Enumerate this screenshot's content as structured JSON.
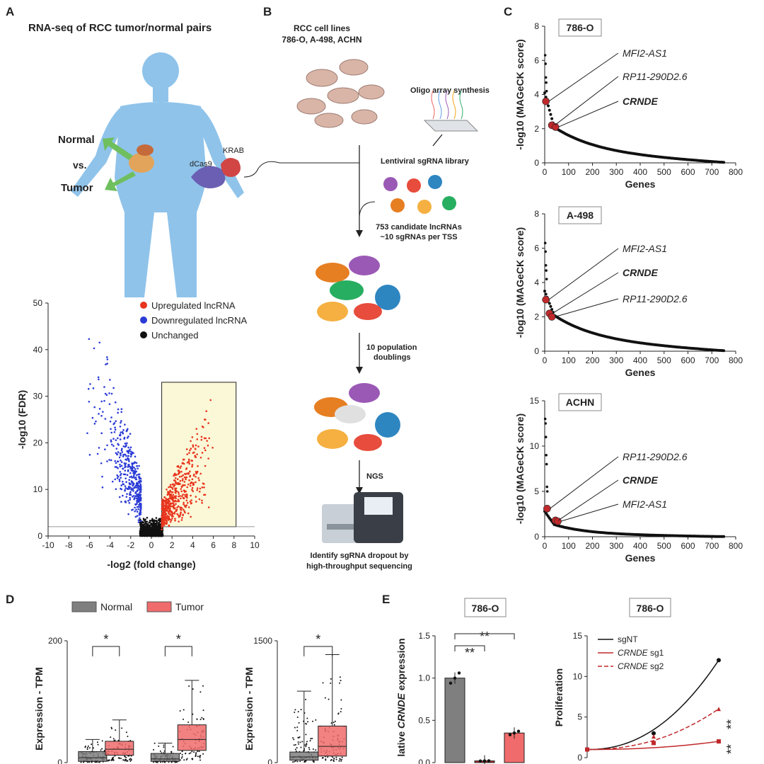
{
  "panels": {
    "A": "A",
    "B": "B",
    "C": "C",
    "D": "D",
    "E": "E"
  },
  "panel_a": {
    "title": "RNA-seq of RCC tumor/normal pairs",
    "normal_label": "Normal",
    "vs_label": "vs.",
    "tumor_label": "Tumor"
  },
  "panel_b": {
    "cell_lines_title": "RCC cell lines",
    "cell_lines_names": "786-O, A-498, ACHN",
    "oligo": "Oligo array synthesis",
    "dcas9": "dCas9",
    "krab": "KRAB",
    "library": "Lentiviral sgRNA library",
    "candidates_1": "753 candidate lncRNAs",
    "candidates_2": "~10 sgRNAs per TSS",
    "doublings_1": "10 population",
    "doublings_2": "doublings",
    "ngs": "NGS",
    "identify_1": "Identify sgRNA dropout by",
    "identify_2": "high-throughput sequencing"
  },
  "colors": {
    "up": "#e8351e",
    "down": "#2a3bd6",
    "unchanged": "#111111",
    "highlight": "#fbf8d8",
    "marker": "#c0292b",
    "normal": "#7f7f7f",
    "tumor": "#f06b6b"
  },
  "chart_data": [
    {
      "id": "volcano",
      "type": "scatter",
      "xlabel": "-log2 (fold change)",
      "ylabel": "-log10 (FDR)",
      "xlim": [
        -10,
        10
      ],
      "ylim": [
        0,
        50
      ],
      "xticks": [
        "-10",
        "-8",
        "-6",
        "-4",
        "-2",
        "0",
        "2",
        "4",
        "6",
        "8",
        "10"
      ],
      "yticks": [
        "0",
        "10",
        "20",
        "30",
        "40",
        "50"
      ],
      "legend": [
        "Upregulated lncRNA",
        "Downregulated lncRNA",
        "Unchanged"
      ],
      "threshold_y": 2,
      "highlight_box": {
        "x": [
          1,
          8.2
        ],
        "y": [
          2,
          33
        ]
      }
    },
    {
      "id": "rank-786o",
      "type": "scatter",
      "title": "786-O",
      "xlabel": "Genes",
      "ylabel": "-log10 (MAGeCK score)",
      "xlim": [
        0,
        800
      ],
      "ylim": [
        0,
        8
      ],
      "xticks": [
        "0",
        "100",
        "200",
        "300",
        "400",
        "500",
        "600",
        "700",
        "800"
      ],
      "yticks": [
        "0",
        "2",
        "4",
        "6",
        "8"
      ],
      "annotations": [
        {
          "label": "MFI2-AS1",
          "bold": false
        },
        {
          "label": "RP11-290D2.6",
          "bold": false
        },
        {
          "label": "CRNDE",
          "bold": true
        }
      ],
      "highlighted": [
        {
          "x": 5,
          "y": 3.6
        },
        {
          "x": 30,
          "y": 2.2
        },
        {
          "x": 45,
          "y": 2.1
        }
      ]
    },
    {
      "id": "rank-a498",
      "type": "scatter",
      "title": "A-498",
      "xlabel": "Genes",
      "ylabel": "-log10 (MAGeCK score)",
      "xlim": [
        0,
        800
      ],
      "ylim": [
        0,
        8
      ],
      "xticks": [
        "0",
        "100",
        "200",
        "300",
        "400",
        "500",
        "600",
        "700",
        "800"
      ],
      "yticks": [
        "0",
        "2",
        "4",
        "6",
        "8"
      ],
      "annotations": [
        {
          "label": "MFI2-AS1",
          "bold": false
        },
        {
          "label": "CRNDE",
          "bold": true
        },
        {
          "label": "RP11-290D2.6",
          "bold": false
        }
      ],
      "highlighted": [
        {
          "x": 5,
          "y": 3.0
        },
        {
          "x": 20,
          "y": 2.2
        },
        {
          "x": 30,
          "y": 2.0
        }
      ]
    },
    {
      "id": "rank-achn",
      "type": "scatter",
      "title": "ACHN",
      "xlabel": "Genes",
      "ylabel": "-log10 (MAGeCK score)",
      "xlim": [
        0,
        800
      ],
      "ylim": [
        0,
        15
      ],
      "xticks": [
        "0",
        "100",
        "200",
        "300",
        "400",
        "500",
        "600",
        "700",
        "800"
      ],
      "yticks": [
        "0",
        "5",
        "10",
        "15"
      ],
      "annotations": [
        {
          "label": "RP11-290D2.6",
          "bold": false
        },
        {
          "label": "CRNDE",
          "bold": true
        },
        {
          "label": "MFI2-AS1",
          "bold": false
        }
      ],
      "highlighted": [
        {
          "x": 10,
          "y": 3.1
        },
        {
          "x": 45,
          "y": 1.8
        },
        {
          "x": 55,
          "y": 1.7
        }
      ]
    },
    {
      "id": "boxplot-1",
      "type": "bar",
      "ylabel": "Expression - TPM",
      "yticks": [
        "0",
        "200"
      ],
      "ylim": [
        0,
        200
      ],
      "legend": [
        "Normal",
        "Tumor"
      ],
      "groups": [
        {
          "normal": {
            "median": 8,
            "q1": 2,
            "q3": 18,
            "max": 38
          },
          "tumor": {
            "median": 22,
            "q1": 12,
            "q3": 35,
            "max": 70
          },
          "sig": "*"
        },
        {
          "normal": {
            "median": 6,
            "q1": 2,
            "q3": 15,
            "max": 32
          },
          "tumor": {
            "median": 38,
            "q1": 20,
            "q3": 62,
            "max": 135
          },
          "sig": "*"
        }
      ]
    },
    {
      "id": "boxplot-2",
      "type": "bar",
      "ylabel": "Expression - TPM",
      "yticks": [
        "0",
        "1500"
      ],
      "ylim": [
        0,
        1500
      ],
      "groups": [
        {
          "normal": {
            "median": 70,
            "q1": 30,
            "q3": 130,
            "max": 880
          },
          "tumor": {
            "median": 200,
            "q1": 80,
            "q3": 450,
            "max": 1330
          },
          "sig": "*"
        }
      ]
    },
    {
      "id": "crnde-expression",
      "type": "bar",
      "title": "786-O",
      "ylabel": "Relative CRNDE expression",
      "ylabel_parts": [
        "lative ",
        "CRNDE",
        " expression"
      ],
      "yticks": [
        "0.0",
        "0.5",
        "1.0",
        "1.5"
      ],
      "ylim": [
        0,
        1.5
      ],
      "values": [
        1.0,
        0.02,
        0.35
      ],
      "sig": [
        "**",
        "**"
      ]
    },
    {
      "id": "proliferation",
      "type": "line",
      "title": "786-O",
      "ylabel": "Proliferation",
      "yticks": [
        "0",
        "5",
        "10",
        "15"
      ],
      "ylim": [
        0,
        15
      ],
      "series": [
        {
          "name": "sgNT",
          "values": [
            1,
            3,
            12
          ]
        },
        {
          "name": "CRNDE sg1",
          "values": [
            1,
            1.8,
            2
          ]
        },
        {
          "name": "CRNDE sg2",
          "values": [
            1,
            2.6,
            6
          ]
        }
      ],
      "legend_parts": [
        [
          "sgNT",
          ""
        ],
        [
          "CRNDE",
          " sg1"
        ],
        [
          "CRNDE",
          " sg2"
        ]
      ],
      "sig": [
        "**",
        "**"
      ]
    }
  ]
}
